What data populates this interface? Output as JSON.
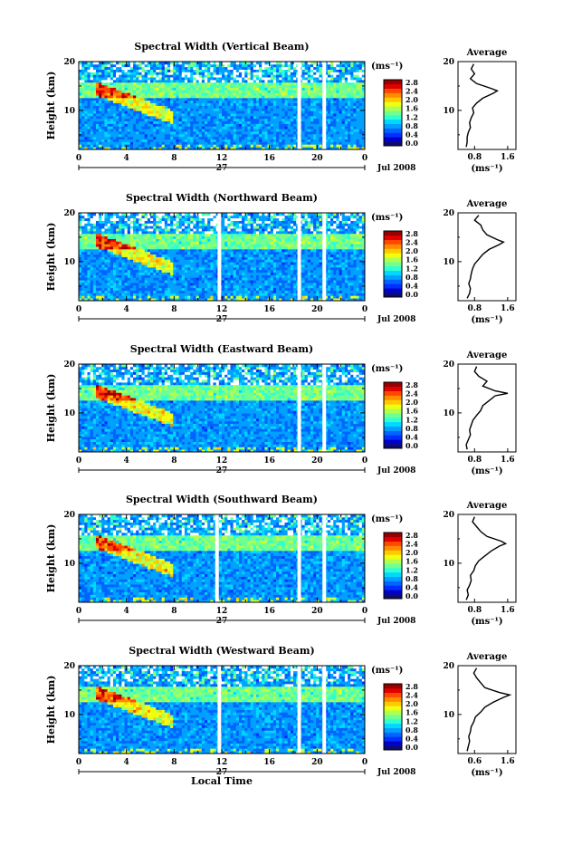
{
  "chart_data": [
    {
      "type": "heatmap",
      "title": "Spectral Width (Vertical Beam)",
      "ylabel": "Height (km)",
      "colorbar_unit": "(ms⁻¹)",
      "avg_title": "Average",
      "avg_xlabel": "(ms⁻¹)",
      "date_day": "27",
      "date_label": "Jul 2008",
      "xlim": [
        0,
        24
      ],
      "ylim": [
        2,
        20
      ],
      "xticks": [
        "0",
        "4",
        "8",
        "12",
        "16",
        "20",
        "0"
      ],
      "yticks": [
        "10",
        "20"
      ],
      "colorbar_ticks": [
        "2.8",
        "2.4",
        "2.0",
        "1.6",
        "1.2",
        "0.8",
        "0.4",
        "0.0"
      ],
      "avg_xticks": [
        "0.8",
        "1.6"
      ],
      "avg_xlim": [
        0.4,
        1.8
      ],
      "data_gaps_hours": [
        18.5,
        20.6
      ],
      "average_profile": {
        "height_km": [
          2.5,
          3.5,
          4.5,
          5.5,
          6.5,
          7.5,
          8.5,
          9.5,
          10.5,
          11.5,
          12.5,
          13.5,
          14.0,
          14.5,
          15.5,
          16.5,
          17.5,
          18.5,
          19.5
        ],
        "width_ms": [
          0.6,
          0.62,
          0.62,
          0.65,
          0.7,
          0.68,
          0.72,
          0.78,
          0.75,
          0.85,
          1.0,
          1.25,
          1.35,
          1.2,
          0.85,
          0.7,
          0.8,
          0.72,
          0.78
        ]
      }
    },
    {
      "type": "heatmap",
      "title": "Spectral Width (Northward Beam)",
      "ylabel": "Height (km)",
      "colorbar_unit": "(ms⁻¹)",
      "avg_title": "Average",
      "avg_xlabel": "(ms⁻¹)",
      "date_day": "27",
      "date_label": "Jul 2008",
      "xlim": [
        0,
        24
      ],
      "ylim": [
        2,
        20
      ],
      "xticks": [
        "0",
        "4",
        "8",
        "12",
        "16",
        "20",
        "0"
      ],
      "yticks": [
        "10",
        "20"
      ],
      "colorbar_ticks": [
        "2.8",
        "2.4",
        "2.0",
        "1.6",
        "1.2",
        "0.8",
        "0.4",
        "0.0"
      ],
      "avg_xticks": [
        "0.8",
        "1.6"
      ],
      "avg_xlim": [
        0.4,
        1.8
      ],
      "data_gaps_hours": [
        11.8,
        18.5,
        20.6
      ],
      "average_profile": {
        "height_km": [
          2.5,
          3.5,
          4.5,
          5.5,
          6.5,
          7.5,
          8.5,
          9.5,
          10.5,
          11.5,
          12.5,
          13.5,
          14.0,
          14.5,
          15.5,
          16.5,
          17.5,
          18.5,
          19.5
        ],
        "width_ms": [
          0.62,
          0.68,
          0.7,
          0.66,
          0.7,
          0.72,
          0.75,
          0.8,
          0.9,
          1.0,
          1.15,
          1.4,
          1.5,
          1.35,
          1.1,
          1.0,
          0.95,
          0.8,
          0.9
        ]
      }
    },
    {
      "type": "heatmap",
      "title": "Spectral Width (Eastward Beam)",
      "ylabel": "Height (km)",
      "colorbar_unit": "(ms⁻¹)",
      "avg_title": "Average",
      "avg_xlabel": "(ms⁻¹)",
      "date_day": "27",
      "date_label": "Jul 2008",
      "xlim": [
        0,
        24
      ],
      "ylim": [
        2,
        20
      ],
      "xticks": [
        "0",
        "4",
        "8",
        "12",
        "16",
        "20",
        "0"
      ],
      "yticks": [
        "10",
        "20"
      ],
      "colorbar_ticks": [
        "2.8",
        "2.4",
        "2.0",
        "1.6",
        "1.2",
        "0.8",
        "0.4",
        "0.0"
      ],
      "avg_xticks": [
        "0.8",
        "1.6"
      ],
      "avg_xlim": [
        0.4,
        1.8
      ],
      "data_gaps_hours": [
        18.5,
        20.6
      ],
      "average_profile": {
        "height_km": [
          2.5,
          3.5,
          4.5,
          5.5,
          6.5,
          7.5,
          8.5,
          9.5,
          10.5,
          11.5,
          12.5,
          13.5,
          14.0,
          14.5,
          15.5,
          16.5,
          17.5,
          18.5,
          19.5
        ],
        "width_ms": [
          0.62,
          0.6,
          0.65,
          0.7,
          0.68,
          0.72,
          0.76,
          0.85,
          0.95,
          1.0,
          1.15,
          1.3,
          1.6,
          1.3,
          1.0,
          1.1,
          0.9,
          0.8,
          0.85
        ]
      }
    },
    {
      "type": "heatmap",
      "title": "Spectral Width (Southward Beam)",
      "ylabel": "Height (km)",
      "colorbar_unit": "(ms⁻¹)",
      "avg_title": "Average",
      "avg_xlabel": "(ms⁻¹)",
      "date_day": "27",
      "date_label": "Jul 2008",
      "xlim": [
        0,
        24
      ],
      "ylim": [
        2,
        20
      ],
      "xticks": [
        "0",
        "4",
        "8",
        "12",
        "16",
        "20",
        "0"
      ],
      "yticks": [
        "10",
        "20"
      ],
      "colorbar_ticks": [
        "2.8",
        "2.4",
        "2.0",
        "1.6",
        "1.2",
        "0.8",
        "0.4",
        "0.0"
      ],
      "avg_xticks": [
        "0.8",
        "1.6"
      ],
      "avg_xlim": [
        0.4,
        1.8
      ],
      "data_gaps_hours": [
        11.6,
        18.5,
        20.6
      ],
      "average_profile": {
        "height_km": [
          2.5,
          3.5,
          4.5,
          5.5,
          6.5,
          7.5,
          8.5,
          9.5,
          10.5,
          11.5,
          12.5,
          13.5,
          14.0,
          14.5,
          15.5,
          16.5,
          17.5,
          18.5,
          19.5
        ],
        "width_ms": [
          0.6,
          0.65,
          0.62,
          0.68,
          0.72,
          0.7,
          0.78,
          0.82,
          0.9,
          1.05,
          1.2,
          1.4,
          1.55,
          1.45,
          1.1,
          0.95,
          0.85,
          0.75,
          0.8
        ]
      }
    },
    {
      "type": "heatmap",
      "title": "Spectral Width (Westward Beam)",
      "ylabel": "Height (km)",
      "colorbar_unit": "(ms⁻¹)",
      "avg_title": "Average",
      "avg_xlabel": "(ms⁻¹)",
      "date_day": "27",
      "date_label": "Jul 2008",
      "xlabel": "Local Time",
      "xlim": [
        0,
        24
      ],
      "ylim": [
        2,
        20
      ],
      "xticks": [
        "0",
        "4",
        "8",
        "12",
        "16",
        "20",
        "0"
      ],
      "yticks": [
        "10",
        "20"
      ],
      "colorbar_ticks": [
        "2.8",
        "2.4",
        "2.0",
        "1.6",
        "1.2",
        "0.8",
        "0.4",
        "0.0"
      ],
      "avg_xticks": [
        "0.6",
        "1.6"
      ],
      "avg_xlim": [
        0.4,
        1.8
      ],
      "data_gaps_hours": [
        11.8,
        18.5,
        20.6
      ],
      "average_profile": {
        "height_km": [
          2.5,
          3.5,
          4.5,
          5.5,
          6.5,
          7.5,
          8.5,
          9.5,
          10.5,
          11.5,
          12.5,
          13.5,
          14.0,
          14.5,
          15.5,
          16.5,
          17.5,
          18.5,
          19.5
        ],
        "width_ms": [
          0.62,
          0.65,
          0.68,
          0.66,
          0.7,
          0.72,
          0.78,
          0.82,
          0.95,
          1.05,
          1.25,
          1.5,
          1.65,
          1.4,
          1.05,
          0.95,
          0.85,
          0.78,
          0.85
        ]
      }
    }
  ]
}
